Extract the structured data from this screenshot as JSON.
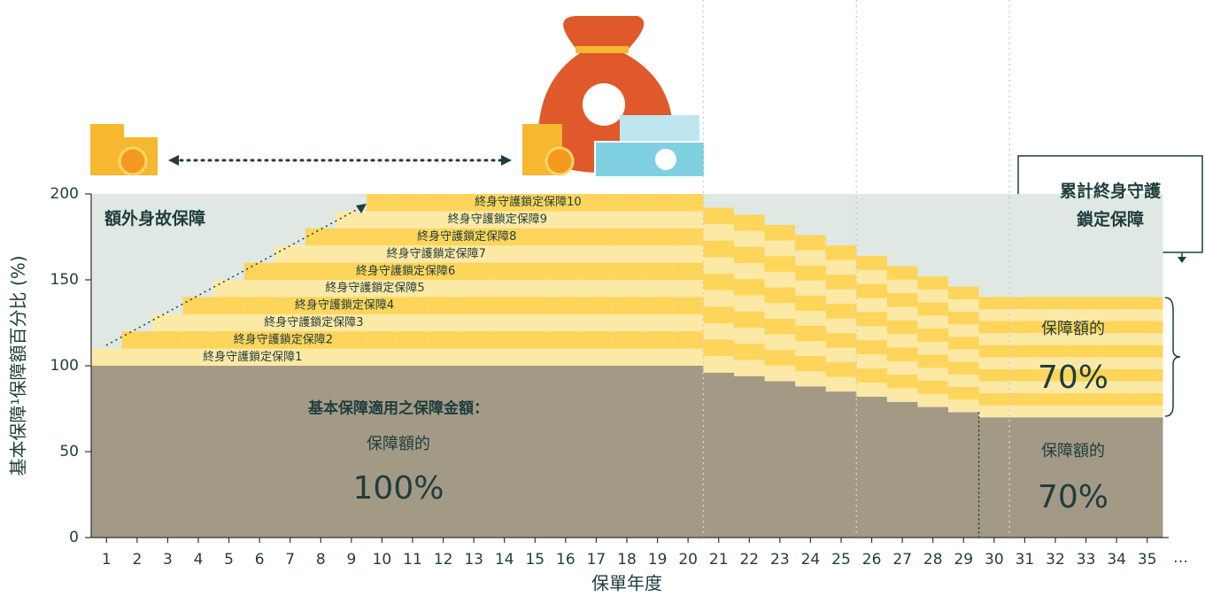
{
  "chart_data": {
    "type": "stacked_bar",
    "x_label": "保單年度",
    "y_label": "基本保障¹保障額百分比 (%)",
    "x": [
      1,
      2,
      3,
      4,
      5,
      6,
      7,
      8,
      9,
      10,
      11,
      12,
      13,
      14,
      15,
      16,
      17,
      18,
      19,
      20,
      21,
      22,
      23,
      24,
      25,
      26,
      27,
      28,
      29,
      30,
      31,
      32,
      33,
      34,
      35
    ],
    "x_more": "…",
    "xlim": [
      0.5,
      35.5
    ],
    "ylim": [
      0,
      200
    ],
    "yticks": [
      0,
      50,
      100,
      150,
      200
    ],
    "series": [
      {
        "color": "#a39a86",
        "values": [
          100,
          100,
          100,
          100,
          100,
          100,
          100,
          100,
          100,
          100,
          100,
          100,
          100,
          100,
          100,
          100,
          100,
          100,
          100,
          100,
          96,
          94,
          91,
          88,
          85,
          82,
          79,
          76,
          73,
          70,
          70,
          70,
          70,
          70,
          70
        ]
      },
      {
        "color": "#fde9a6",
        "stripe_color": "#fcd55a",
        "values": [
          10,
          20,
          30,
          40,
          50,
          60,
          70,
          80,
          90,
          100,
          100,
          100,
          100,
          100,
          100,
          100,
          100,
          100,
          100,
          100,
          96,
          94,
          91,
          88,
          85,
          82,
          79,
          76,
          73,
          70,
          70,
          70,
          70,
          70,
          70
        ]
      }
    ],
    "tier_labels": [
      "終身守護鎖定保障1",
      "終身守護鎖定保障2",
      "終身守護鎖定保障3",
      "終身守護鎖定保障4",
      "終身守護鎖定保障5",
      "終身守護鎖定保障6",
      "終身守護鎖定保障7",
      "終身守護鎖定保障8",
      "終身守護鎖定保障9",
      "終身守護鎖定保障10"
    ],
    "extra_color": "#dfe8e3",
    "annotations": {
      "extra_benefit": "額外身故保障",
      "base_heading": "基本保障適用之保障金額：",
      "base_caption": "保障額的",
      "base_value": "100%",
      "base_later_caption": "保障額的",
      "base_later_value": "70%",
      "locked_later_caption": "保障額的",
      "locked_later_value": "70%",
      "callout": [
        "累計終身守護",
        "鎖定保障"
      ]
    }
  }
}
